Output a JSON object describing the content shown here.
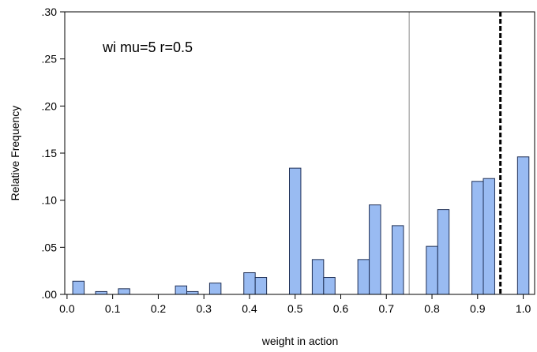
{
  "chart_data": {
    "type": "bar",
    "title": "",
    "xlabel": "weight in action",
    "ylabel": "Relative Frequency",
    "annotation": "wi mu=5 r=0.5",
    "xlim": [
      -0.005,
      1.025
    ],
    "ylim": [
      0,
      0.3
    ],
    "x_ticks": [
      0.0,
      0.1,
      0.2,
      0.3,
      0.4,
      0.5,
      0.6,
      0.7,
      0.8,
      0.9,
      1.0
    ],
    "x_tick_labels": [
      "0.0",
      "0.1",
      "0.2",
      "0.3",
      "0.4",
      "0.5",
      "0.6",
      "0.7",
      "0.8",
      "0.9",
      "1.0"
    ],
    "y_ticks": [
      0,
      0.05,
      0.1,
      0.15,
      0.2,
      0.25,
      0.3
    ],
    "y_tick_labels": [
      ".00",
      ".05",
      ".10",
      ".15",
      ".20",
      ".25",
      ".30"
    ],
    "bin_width": 0.025,
    "bars": [
      {
        "x": 0.025,
        "value": 0.014
      },
      {
        "x": 0.075,
        "value": 0.003
      },
      {
        "x": 0.125,
        "value": 0.006
      },
      {
        "x": 0.25,
        "value": 0.009
      },
      {
        "x": 0.275,
        "value": 0.003
      },
      {
        "x": 0.325,
        "value": 0.012
      },
      {
        "x": 0.4,
        "value": 0.023
      },
      {
        "x": 0.425,
        "value": 0.018
      },
      {
        "x": 0.5,
        "value": 0.134
      },
      {
        "x": 0.55,
        "value": 0.037
      },
      {
        "x": 0.575,
        "value": 0.018
      },
      {
        "x": 0.65,
        "value": 0.037
      },
      {
        "x": 0.675,
        "value": 0.095
      },
      {
        "x": 0.725,
        "value": 0.073
      },
      {
        "x": 0.8,
        "value": 0.051
      },
      {
        "x": 0.825,
        "value": 0.09
      },
      {
        "x": 0.9,
        "value": 0.12
      },
      {
        "x": 0.925,
        "value": 0.123
      },
      {
        "x": 1.0,
        "value": 0.146
      }
    ],
    "reference_lines": [
      {
        "x": 0.75,
        "style": "solid",
        "color": "#8a8a8a"
      },
      {
        "x": 0.95,
        "style": "dashed",
        "color": "#000000"
      }
    ],
    "bar_color": "#99bbf2",
    "bar_edge_color": "#1f2f55",
    "grid": false
  }
}
